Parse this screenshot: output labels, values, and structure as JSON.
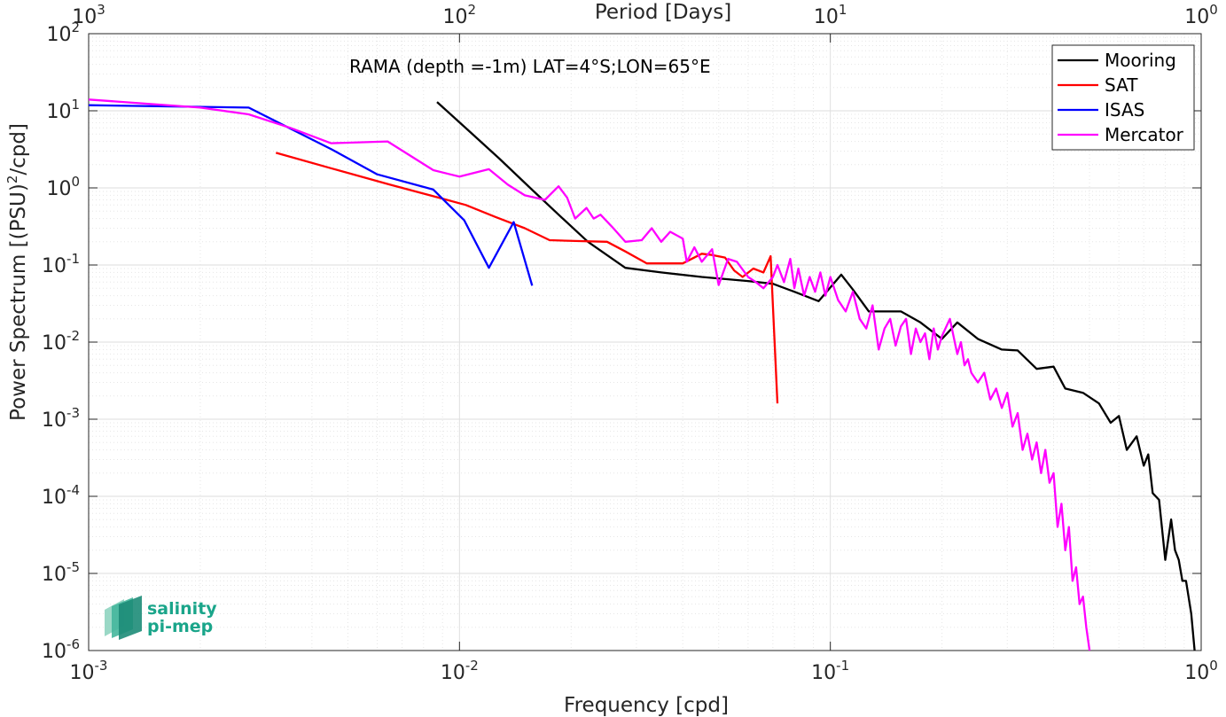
{
  "chart_data": {
    "type": "line",
    "title": "",
    "annotation": "RAMA (depth =-1m) LAT=4°S;LON=65°E",
    "xlabel": "Frequency [cpd]",
    "ylabel": "Power Spectrum [(PSU)",
    "ylabel_sup": "2",
    "ylabel_tail": "/cpd]",
    "top_xlabel": "Period [Days]",
    "xscale": "log",
    "yscale": "log",
    "xlim": [
      0.001,
      1
    ],
    "ylim": [
      1e-06,
      100
    ],
    "grid": true,
    "legend_position": "top-right",
    "x_ticks": [
      {
        "value": 0.001,
        "base": "10",
        "exp": "-3"
      },
      {
        "value": 0.01,
        "base": "10",
        "exp": "-2"
      },
      {
        "value": 0.1,
        "base": "10",
        "exp": "-1"
      },
      {
        "value": 1,
        "base": "10",
        "exp": "0"
      }
    ],
    "y_ticks": [
      {
        "value": 1e-06,
        "base": "10",
        "exp": "-6"
      },
      {
        "value": 1e-05,
        "base": "10",
        "exp": "-5"
      },
      {
        "value": 0.0001,
        "base": "10",
        "exp": "-4"
      },
      {
        "value": 0.001,
        "base": "10",
        "exp": "-3"
      },
      {
        "value": 0.01,
        "base": "10",
        "exp": "-2"
      },
      {
        "value": 0.1,
        "base": "10",
        "exp": "-1"
      },
      {
        "value": 1,
        "base": "10",
        "exp": "0"
      },
      {
        "value": 10,
        "base": "10",
        "exp": "1"
      },
      {
        "value": 100,
        "base": "10",
        "exp": "2"
      }
    ],
    "top_ticks": [
      {
        "value": 0.001,
        "base": "10",
        "exp": "3"
      },
      {
        "value": 0.01,
        "base": "10",
        "exp": "2"
      },
      {
        "value": 0.1,
        "base": "10",
        "exp": "1"
      },
      {
        "value": 1,
        "base": "10",
        "exp": "0"
      }
    ],
    "series": [
      {
        "name": "Mooring",
        "color": "#000000",
        "points": [
          [
            0.0087,
            13
          ],
          [
            0.0106,
            5.5
          ],
          [
            0.0128,
            2.4
          ],
          [
            0.0155,
            1.0
          ],
          [
            0.0185,
            0.45
          ],
          [
            0.0222,
            0.2
          ],
          [
            0.028,
            0.092
          ],
          [
            0.035,
            0.08
          ],
          [
            0.045,
            0.07
          ],
          [
            0.06,
            0.062
          ],
          [
            0.07,
            0.057
          ],
          [
            0.08,
            0.045
          ],
          [
            0.093,
            0.034
          ],
          [
            0.107,
            0.075
          ],
          [
            0.115,
            0.048
          ],
          [
            0.127,
            0.025
          ],
          [
            0.14,
            0.025
          ],
          [
            0.155,
            0.025
          ],
          [
            0.175,
            0.018
          ],
          [
            0.2,
            0.011
          ],
          [
            0.22,
            0.018
          ],
          [
            0.25,
            0.011
          ],
          [
            0.29,
            0.008
          ],
          [
            0.32,
            0.0078
          ],
          [
            0.36,
            0.0045
          ],
          [
            0.4,
            0.0048
          ],
          [
            0.43,
            0.0025
          ],
          [
            0.48,
            0.0022
          ],
          [
            0.53,
            0.0016
          ],
          [
            0.57,
            0.0009
          ],
          [
            0.6,
            0.0011
          ],
          [
            0.63,
            0.0004
          ],
          [
            0.67,
            0.0006
          ],
          [
            0.7,
            0.00025
          ],
          [
            0.72,
            0.00035
          ],
          [
            0.74,
            0.00011
          ],
          [
            0.77,
            9e-05
          ],
          [
            0.8,
            1.5e-05
          ],
          [
            0.83,
            5e-05
          ],
          [
            0.85,
            2e-05
          ],
          [
            0.87,
            1.5e-05
          ],
          [
            0.89,
            8e-06
          ],
          [
            0.91,
            8e-06
          ],
          [
            0.94,
            3e-06
          ],
          [
            0.96,
            1e-06
          ]
        ]
      },
      {
        "name": "SAT",
        "color": "#ff0000",
        "points": [
          [
            0.0032,
            2.85
          ],
          [
            0.0045,
            1.8
          ],
          [
            0.0065,
            1.1
          ],
          [
            0.0085,
            0.78
          ],
          [
            0.0104,
            0.6
          ],
          [
            0.0125,
            0.42
          ],
          [
            0.015,
            0.3
          ],
          [
            0.0175,
            0.21
          ],
          [
            0.0205,
            0.205
          ],
          [
            0.025,
            0.2
          ],
          [
            0.028,
            0.15
          ],
          [
            0.032,
            0.105
          ],
          [
            0.036,
            0.105
          ],
          [
            0.04,
            0.105
          ],
          [
            0.045,
            0.14
          ],
          [
            0.048,
            0.135
          ],
          [
            0.052,
            0.125
          ],
          [
            0.055,
            0.085
          ],
          [
            0.058,
            0.07
          ],
          [
            0.062,
            0.09
          ],
          [
            0.066,
            0.08
          ],
          [
            0.069,
            0.13
          ],
          [
            0.072,
            0.0016
          ]
        ]
      },
      {
        "name": "ISAS",
        "color": "#0000ff",
        "points": [
          [
            0.001,
            11.8
          ],
          [
            0.0027,
            11.0
          ],
          [
            0.0045,
            3.2
          ],
          [
            0.006,
            1.5
          ],
          [
            0.0085,
            0.95
          ],
          [
            0.0103,
            0.38
          ],
          [
            0.012,
            0.092
          ],
          [
            0.014,
            0.36
          ],
          [
            0.0157,
            0.054
          ]
        ]
      },
      {
        "name": "Mercator",
        "color": "#ff00ff",
        "points": [
          [
            0.001,
            14
          ],
          [
            0.002,
            11
          ],
          [
            0.0027,
            9
          ],
          [
            0.0035,
            6
          ],
          [
            0.0045,
            3.8
          ],
          [
            0.0064,
            4.0
          ],
          [
            0.0085,
            1.7
          ],
          [
            0.01,
            1.4
          ],
          [
            0.012,
            1.75
          ],
          [
            0.0135,
            1.1
          ],
          [
            0.015,
            0.8
          ],
          [
            0.017,
            0.7
          ],
          [
            0.0185,
            1.05
          ],
          [
            0.0195,
            0.75
          ],
          [
            0.0205,
            0.4
          ],
          [
            0.022,
            0.55
          ],
          [
            0.023,
            0.4
          ],
          [
            0.024,
            0.45
          ],
          [
            0.026,
            0.3
          ],
          [
            0.028,
            0.2
          ],
          [
            0.031,
            0.21
          ],
          [
            0.033,
            0.3
          ],
          [
            0.035,
            0.2
          ],
          [
            0.037,
            0.27
          ],
          [
            0.04,
            0.22
          ],
          [
            0.041,
            0.11
          ],
          [
            0.043,
            0.17
          ],
          [
            0.045,
            0.11
          ],
          [
            0.048,
            0.16
          ],
          [
            0.05,
            0.055
          ],
          [
            0.053,
            0.12
          ],
          [
            0.056,
            0.11
          ],
          [
            0.06,
            0.07
          ],
          [
            0.063,
            0.06
          ],
          [
            0.066,
            0.05
          ],
          [
            0.07,
            0.07
          ],
          [
            0.072,
            0.1
          ],
          [
            0.075,
            0.06
          ],
          [
            0.078,
            0.12
          ],
          [
            0.08,
            0.05
          ],
          [
            0.082,
            0.09
          ],
          [
            0.085,
            0.04
          ],
          [
            0.088,
            0.07
          ],
          [
            0.091,
            0.045
          ],
          [
            0.094,
            0.08
          ],
          [
            0.097,
            0.04
          ],
          [
            0.1,
            0.07
          ],
          [
            0.105,
            0.035
          ],
          [
            0.11,
            0.025
          ],
          [
            0.115,
            0.045
          ],
          [
            0.12,
            0.02
          ],
          [
            0.125,
            0.015
          ],
          [
            0.13,
            0.03
          ],
          [
            0.135,
            0.008
          ],
          [
            0.14,
            0.015
          ],
          [
            0.145,
            0.02
          ],
          [
            0.15,
            0.009
          ],
          [
            0.155,
            0.016
          ],
          [
            0.16,
            0.02
          ],
          [
            0.165,
            0.007
          ],
          [
            0.17,
            0.015
          ],
          [
            0.175,
            0.01
          ],
          [
            0.18,
            0.013
          ],
          [
            0.185,
            0.006
          ],
          [
            0.19,
            0.015
          ],
          [
            0.195,
            0.008
          ],
          [
            0.2,
            0.012
          ],
          [
            0.21,
            0.02
          ],
          [
            0.22,
            0.007
          ],
          [
            0.225,
            0.01
          ],
          [
            0.23,
            0.005
          ],
          [
            0.235,
            0.006
          ],
          [
            0.24,
            0.004
          ],
          [
            0.25,
            0.003
          ],
          [
            0.26,
            0.004
          ],
          [
            0.27,
            0.0018
          ],
          [
            0.28,
            0.0025
          ],
          [
            0.29,
            0.0014
          ],
          [
            0.3,
            0.0022
          ],
          [
            0.31,
            0.0008
          ],
          [
            0.32,
            0.0012
          ],
          [
            0.33,
            0.0004
          ],
          [
            0.34,
            0.00065
          ],
          [
            0.35,
            0.0003
          ],
          [
            0.36,
            0.0005
          ],
          [
            0.37,
            0.0002
          ],
          [
            0.38,
            0.0004
          ],
          [
            0.39,
            0.00015
          ],
          [
            0.4,
            0.0002
          ],
          [
            0.41,
            4e-05
          ],
          [
            0.42,
            8e-05
          ],
          [
            0.43,
            2e-05
          ],
          [
            0.44,
            4e-05
          ],
          [
            0.45,
            8e-06
          ],
          [
            0.46,
            1.2e-05
          ],
          [
            0.47,
            4e-06
          ],
          [
            0.48,
            5e-06
          ],
          [
            0.49,
            2e-06
          ],
          [
            0.5,
            1e-06
          ]
        ]
      }
    ]
  },
  "logo": {
    "line1": "salinity",
    "line2": "pi-mep"
  }
}
